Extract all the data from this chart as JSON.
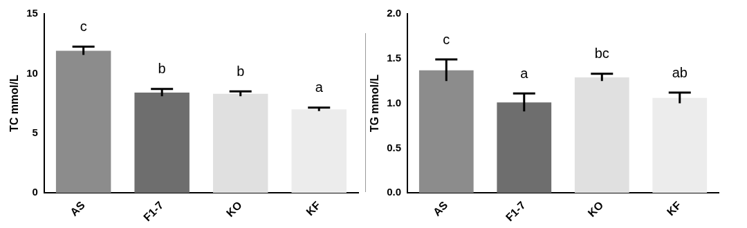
{
  "chart_data": [
    {
      "type": "bar",
      "ylabel": "TC mmol/L",
      "categories": [
        "AS",
        "F1-7",
        "KO",
        "KF"
      ],
      "values": [
        11.9,
        8.4,
        8.3,
        7.0
      ],
      "errors": [
        0.35,
        0.3,
        0.2,
        0.15
      ],
      "colors": [
        "#8c8c8c",
        "#6e6e6e",
        "#e0e0e0",
        "#ececec"
      ],
      "ylim": [
        0,
        15
      ],
      "yticks": [
        0,
        5,
        10,
        15
      ],
      "annotations": [
        "c",
        "b",
        "b",
        "a"
      ]
    },
    {
      "type": "bar",
      "ylabel": "TG mmol/L",
      "categories": [
        "AS",
        "F1-7",
        "KO",
        "KF"
      ],
      "values": [
        1.37,
        1.01,
        1.29,
        1.06
      ],
      "errors": [
        0.12,
        0.1,
        0.04,
        0.06
      ],
      "colors": [
        "#8c8c8c",
        "#6e6e6e",
        "#e0e0e0",
        "#ececec"
      ],
      "ylim": [
        0,
        2.0
      ],
      "yticks": [
        {
          "value": 0,
          "label": "0.0"
        },
        {
          "value": 0.5,
          "label": "0.5"
        },
        {
          "value": 1,
          "label": "1.0"
        },
        {
          "value": 1.5,
          "label": "1.5"
        },
        {
          "value": 2,
          "label": "2.0"
        }
      ],
      "annotations": [
        "c",
        "a",
        "bc",
        "ab"
      ]
    }
  ]
}
